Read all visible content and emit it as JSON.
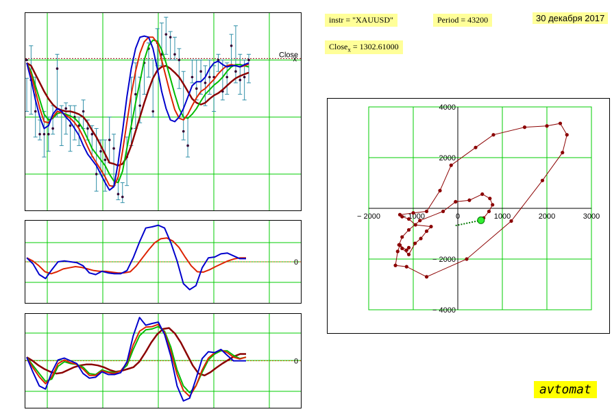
{
  "header": {
    "instr_label": "instr = \"XAUUSD\"",
    "period_label": "Period = 43200",
    "date": "30 декабря 2017",
    "close_label_main": "Close",
    "close_label_sub": "x",
    "close_value": " = 1302.61000",
    "brand": "avtomat"
  },
  "colors": {
    "grid": "#00cc00",
    "blue": "#0000cc",
    "red": "#dd2200",
    "green": "#00bb00",
    "darkred": "#8b0000",
    "teal": "#2f8fa8",
    "zero": "#cc6600"
  },
  "chart_data": [
    {
      "type": "line",
      "name": "price-chart",
      "ylim": [
        1040,
        1380
      ],
      "yticks": [
        1100,
        1200,
        1300
      ],
      "close_level": 1302.61,
      "close_label": "Close_x",
      "ohlc": [
        [
          1300,
          1268,
          1210
        ],
        [
          1265,
          1325,
          1205
        ],
        [
          1210,
          1270,
          1165
        ],
        [
          1170,
          1195,
          1160
        ],
        [
          1170,
          1210,
          1130
        ],
        [
          1170,
          1200,
          1140
        ],
        [
          1180,
          1220,
          1170
        ],
        [
          1285,
          1310,
          1200
        ],
        [
          1210,
          1220,
          1150
        ],
        [
          1215,
          1225,
          1170
        ],
        [
          1185,
          1220,
          1140
        ],
        [
          1200,
          1220,
          1160
        ],
        [
          1185,
          1200,
          1150
        ],
        [
          1210,
          1230,
          1180
        ],
        [
          1180,
          1195,
          1160
        ],
        [
          1170,
          1185,
          1130
        ],
        [
          1100,
          1180,
          1070
        ],
        [
          1140,
          1160,
          1100
        ],
        [
          1125,
          1160,
          1070
        ],
        [
          1160,
          1200,
          1120
        ],
        [
          1145,
          1170,
          1080
        ],
        [
          1065,
          1100,
          1055
        ],
        [
          1060,
          1085,
          1050
        ],
        [
          1130,
          1165,
          1080
        ],
        [
          1180,
          1270,
          1150
        ],
        [
          1240,
          1295,
          1180
        ],
        [
          1220,
          1270,
          1190
        ],
        [
          1295,
          1300,
          1240
        ],
        [
          1320,
          1330,
          1270
        ],
        [
          1210,
          1300,
          1200
        ],
        [
          1330,
          1355,
          1290
        ],
        [
          1310,
          1365,
          1290
        ],
        [
          1345,
          1375,
          1310
        ],
        [
          1340,
          1350,
          1300
        ],
        [
          1310,
          1340,
          1300
        ],
        [
          1300,
          1320,
          1250
        ],
        [
          1175,
          1280,
          1160
        ],
        [
          1150,
          1200,
          1130
        ],
        [
          1270,
          1300,
          1260
        ],
        [
          1250,
          1300,
          1230
        ],
        [
          1280,
          1300,
          1240
        ],
        [
          1260,
          1290,
          1220
        ],
        [
          1270,
          1300,
          1240
        ],
        [
          1270,
          1290,
          1210
        ],
        [
          1300,
          1310,
          1280
        ],
        [
          1245,
          1300,
          1230
        ],
        [
          1270,
          1295,
          1240
        ],
        [
          1325,
          1345,
          1290
        ],
        [
          1280,
          1360,
          1260
        ],
        [
          1265,
          1310,
          1240
        ],
        [
          1270,
          1300,
          1230
        ],
        [
          1300,
          1310,
          1260
        ]
      ],
      "series": [
        {
          "color": "darkred",
          "width": 2.5,
          "values": [
            1295,
            1290,
            1275,
            1260,
            1245,
            1232,
            1222,
            1215,
            1212,
            1210,
            1210,
            1208,
            1205,
            1200,
            1190,
            1177,
            1165,
            1150,
            1135,
            1120,
            1118,
            1115,
            1118,
            1130,
            1150,
            1175,
            1200,
            1225,
            1248,
            1268,
            1282,
            1288,
            1290,
            1285,
            1278,
            1270,
            1258,
            1245,
            1232,
            1225,
            1222,
            1225,
            1232,
            1238,
            1242,
            1248,
            1255,
            1262,
            1268,
            1272,
            1275,
            1278
          ]
        },
        {
          "color": "green",
          "width": 2,
          "values": [
            1295,
            1280,
            1255,
            1230,
            1205,
            1195,
            1198,
            1206,
            1208,
            1205,
            1202,
            1198,
            1190,
            1178,
            1162,
            1145,
            1135,
            1125,
            1115,
            1100,
            1088,
            1085,
            1105,
            1145,
            1185,
            1225,
            1262,
            1300,
            1325,
            1335,
            1333,
            1318,
            1295,
            1268,
            1240,
            1215,
            1200,
            1198,
            1205,
            1215,
            1228,
            1240,
            1248,
            1256,
            1262,
            1270,
            1280,
            1288,
            1292,
            1292,
            1290,
            1288
          ]
        },
        {
          "color": "red",
          "width": 2,
          "values": [
            1295,
            1275,
            1245,
            1215,
            1192,
            1190,
            1200,
            1210,
            1208,
            1203,
            1198,
            1190,
            1180,
            1165,
            1148,
            1132,
            1120,
            1108,
            1095,
            1080,
            1078,
            1095,
            1140,
            1190,
            1240,
            1280,
            1312,
            1332,
            1340,
            1340,
            1330,
            1300,
            1270,
            1240,
            1213,
            1198,
            1195,
            1205,
            1220,
            1234,
            1245,
            1250,
            1258,
            1266,
            1276,
            1284,
            1290,
            1292,
            1290,
            1288,
            1290,
            1293
          ]
        },
        {
          "color": "blue",
          "width": 2,
          "values": [
            1295,
            1265,
            1230,
            1200,
            1180,
            1185,
            1205,
            1215,
            1210,
            1200,
            1192,
            1180,
            1168,
            1150,
            1135,
            1125,
            1115,
            1100,
            1085,
            1072,
            1078,
            1120,
            1175,
            1235,
            1285,
            1320,
            1340,
            1342,
            1340,
            1320,
            1285,
            1245,
            1215,
            1195,
            1192,
            1200,
            1215,
            1235,
            1255,
            1262,
            1262,
            1270,
            1285,
            1295,
            1298,
            1292,
            1288,
            1290,
            1290,
            1288,
            1292,
            1295
          ]
        }
      ]
    },
    {
      "type": "line",
      "name": "oscillator-1",
      "ylim": [
        -1,
        1
      ],
      "zero_label": "0",
      "series": [
        {
          "color": "red",
          "width": 2,
          "values": [
            0.1,
            0.02,
            -0.1,
            -0.25,
            -0.3,
            -0.25,
            -0.18,
            -0.15,
            -0.12,
            -0.14,
            -0.18,
            -0.22,
            -0.24,
            -0.24,
            -0.26,
            -0.28,
            -0.28,
            -0.25,
            -0.1,
            0.1,
            0.3,
            0.48,
            0.58,
            0.6,
            0.52,
            0.36,
            0.12,
            -0.1,
            -0.25,
            -0.26,
            -0.2,
            -0.12,
            -0.05,
            0.02,
            0.07,
            0.1,
            0.1
          ]
        },
        {
          "color": "blue",
          "width": 2,
          "values": [
            0.1,
            -0.05,
            -0.32,
            -0.42,
            -0.2,
            0.0,
            0.02,
            0.0,
            -0.02,
            -0.1,
            -0.28,
            -0.32,
            -0.24,
            -0.28,
            -0.3,
            -0.3,
            -0.22,
            0.1,
            0.5,
            0.85,
            0.88,
            0.92,
            0.85,
            0.48,
            0.02,
            -0.55,
            -0.7,
            -0.6,
            -0.15,
            0.1,
            0.12,
            0.2,
            0.22,
            0.15,
            0.08,
            0.08
          ]
        }
      ]
    },
    {
      "type": "line",
      "name": "oscillator-2",
      "ylim": [
        -1,
        1
      ],
      "zero_label": "0",
      "series": [
        {
          "color": "darkred",
          "width": 2.5,
          "values": [
            0.08,
            0.0,
            -0.1,
            -0.18,
            -0.24,
            -0.28,
            -0.26,
            -0.2,
            -0.14,
            -0.1,
            -0.08,
            -0.08,
            -0.1,
            -0.14,
            -0.2,
            -0.24,
            -0.22,
            -0.18,
            -0.14,
            -0.02,
            0.18,
            0.4,
            0.58,
            0.7,
            0.72,
            0.6,
            0.4,
            0.15,
            -0.1,
            -0.28,
            -0.32,
            -0.25,
            -0.15,
            -0.06,
            0.02,
            0.1,
            0.15,
            0.15
          ]
        },
        {
          "color": "green",
          "width": 2,
          "values": [
            0.08,
            -0.1,
            -0.28,
            -0.45,
            -0.4,
            -0.12,
            -0.02,
            -0.06,
            -0.08,
            -0.14,
            -0.28,
            -0.3,
            -0.2,
            -0.24,
            -0.26,
            -0.22,
            -0.1,
            0.25,
            0.55,
            0.68,
            0.7,
            0.75,
            0.65,
            0.3,
            -0.2,
            -0.55,
            -0.7,
            -0.55,
            -0.25,
            0.02,
            0.15,
            0.22,
            0.22,
            0.12,
            0.05,
            0.08
          ]
        },
        {
          "color": "red",
          "width": 2,
          "values": [
            0.08,
            -0.15,
            -0.35,
            -0.5,
            -0.35,
            -0.06,
            0.02,
            -0.04,
            -0.08,
            -0.18,
            -0.32,
            -0.32,
            -0.22,
            -0.26,
            -0.28,
            -0.22,
            -0.05,
            0.35,
            0.65,
            0.74,
            0.75,
            0.8,
            0.62,
            0.2,
            -0.3,
            -0.65,
            -0.78,
            -0.55,
            -0.2,
            0.06,
            0.18,
            0.24,
            0.18,
            0.08,
            0.04,
            0.08
          ]
        },
        {
          "color": "blue",
          "width": 2,
          "values": [
            0.08,
            -0.25,
            -0.55,
            -0.62,
            -0.25,
            0.02,
            0.06,
            0.0,
            -0.06,
            -0.28,
            -0.38,
            -0.36,
            -0.24,
            -0.3,
            -0.3,
            -0.26,
            -0.02,
            0.55,
            0.95,
            0.78,
            0.82,
            0.85,
            0.58,
            0.1,
            -0.55,
            -0.88,
            -0.82,
            -0.4,
            0.05,
            0.2,
            0.18,
            0.25,
            0.12,
            0.0,
            0.0,
            0.0
          ]
        }
      ]
    },
    {
      "type": "scatter",
      "name": "phase-plot",
      "xlim": [
        -2200,
        3000
      ],
      "ylim": [
        -4200,
        4200
      ],
      "xticks": [
        -2000,
        -1000,
        0,
        1000,
        2000,
        3000
      ],
      "yticks": [
        -4000,
        -2000,
        2000,
        4000
      ],
      "xtick_labels": [
        "− 2000",
        "− 1000",
        "0",
        "1000",
        "2000",
        "3000"
      ],
      "ytick_labels": [
        "− 4000",
        "− 2000",
        "2000",
        "4000"
      ],
      "points": [
        [
          520,
          -450
        ],
        [
          580,
          -380
        ],
        [
          700,
          -120
        ],
        [
          780,
          140
        ],
        [
          720,
          390
        ],
        [
          550,
          560
        ],
        [
          260,
          320
        ],
        [
          -50,
          260
        ],
        [
          -330,
          -120
        ],
        [
          -850,
          -480
        ],
        [
          -1100,
          -850
        ],
        [
          -1250,
          -1130
        ],
        [
          -1320,
          -1440
        ],
        [
          -1250,
          -1580
        ],
        [
          -1100,
          -1820
        ],
        [
          -960,
          -1380
        ],
        [
          -830,
          -1190
        ],
        [
          -700,
          -900
        ],
        [
          -600,
          -720
        ],
        [
          -950,
          -650
        ],
        [
          -1100,
          -420
        ],
        [
          -1250,
          -330
        ],
        [
          -1300,
          -250
        ],
        [
          -1000,
          -180
        ],
        [
          -700,
          -120
        ],
        [
          -400,
          700
        ],
        [
          -150,
          1700
        ],
        [
          400,
          2400
        ],
        [
          800,
          2900
        ],
        [
          1500,
          3200
        ],
        [
          2000,
          3250
        ],
        [
          2300,
          3350
        ],
        [
          2450,
          2900
        ],
        [
          2350,
          2200
        ],
        [
          1900,
          1100
        ],
        [
          1200,
          -500
        ],
        [
          200,
          -2000
        ],
        [
          -700,
          -2700
        ],
        [
          -1150,
          -2300
        ],
        [
          -1400,
          -2250
        ],
        [
          -1350,
          -1700
        ],
        [
          -1300,
          -1450
        ],
        [
          -1150,
          -1650
        ],
        [
          -1100,
          -1550
        ]
      ],
      "current": [
        520,
        -470
      ],
      "tail_end": [
        -50,
        -680
      ]
    }
  ]
}
